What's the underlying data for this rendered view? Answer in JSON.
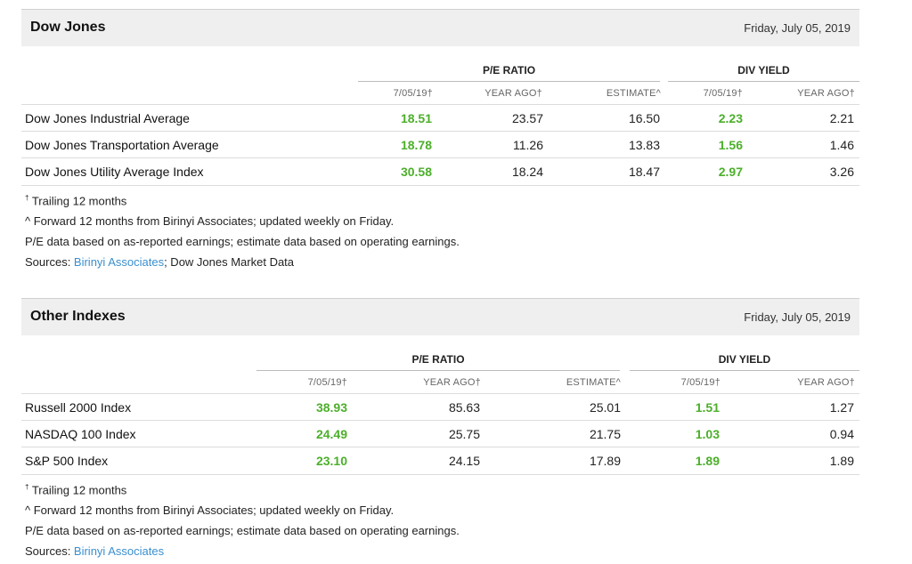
{
  "sections": [
    {
      "title": "Dow Jones",
      "date": "Friday, July 05, 2019",
      "group_pe": "P/E RATIO",
      "group_div": "DIV YIELD",
      "sub_headers": [
        "7/05/19†",
        "YEAR AGO†",
        "ESTIMATE^",
        "7/05/19†",
        "YEAR AGO†"
      ],
      "rows": [
        {
          "name": "Dow Jones Industrial Average",
          "pe_current": "18.51",
          "pe_year_ago": "23.57",
          "pe_estimate": "16.50",
          "div_current": "2.23",
          "div_year_ago": "2.21"
        },
        {
          "name": "Dow Jones Transportation Average",
          "pe_current": "18.78",
          "pe_year_ago": "11.26",
          "pe_estimate": "13.83",
          "div_current": "1.56",
          "div_year_ago": "1.46"
        },
        {
          "name": "Dow Jones Utility Average Index",
          "pe_current": "30.58",
          "pe_year_ago": "18.24",
          "pe_estimate": "18.47",
          "div_current": "2.97",
          "div_year_ago": "3.26"
        }
      ],
      "notes": {
        "trailing": "Trailing 12 months",
        "forward": "^ Forward 12 months from Birinyi Associates; updated weekly on Friday.",
        "pe_data": "P/E data based on as-reported earnings; estimate data based on operating earnings.",
        "sources_label": "Sources: ",
        "sources_link": "Birinyi Associates",
        "sources_rest": "; Dow Jones Market Data"
      }
    },
    {
      "title": "Other Indexes",
      "date": "Friday, July 05, 2019",
      "group_pe": "P/E RATIO",
      "group_div": "DIV YIELD",
      "sub_headers": [
        "7/05/19†",
        "YEAR AGO†",
        "ESTIMATE^",
        "7/05/19†",
        "YEAR AGO†"
      ],
      "rows": [
        {
          "name": "Russell 2000 Index",
          "pe_current": "38.93",
          "pe_year_ago": "85.63",
          "pe_estimate": "25.01",
          "div_current": "1.51",
          "div_year_ago": "1.27"
        },
        {
          "name": "NASDAQ 100 Index",
          "pe_current": "24.49",
          "pe_year_ago": "25.75",
          "pe_estimate": "21.75",
          "div_current": "1.03",
          "div_year_ago": "0.94"
        },
        {
          "name": "S&P 500 Index",
          "pe_current": "23.10",
          "pe_year_ago": "24.15",
          "pe_estimate": "17.89",
          "div_current": "1.89",
          "div_year_ago": "1.89"
        }
      ],
      "notes": {
        "trailing": "Trailing 12 months",
        "forward": "^ Forward 12 months from Birinyi Associates; updated weekly on Friday.",
        "pe_data": "P/E data based on as-reported earnings; estimate data based on operating earnings.",
        "sources_label": "Sources: ",
        "sources_link": "Birinyi Associates"
      }
    }
  ],
  "colors": {
    "positive": "#4caf2b",
    "link": "#3a8fcf",
    "header_bg": "#efefef"
  }
}
